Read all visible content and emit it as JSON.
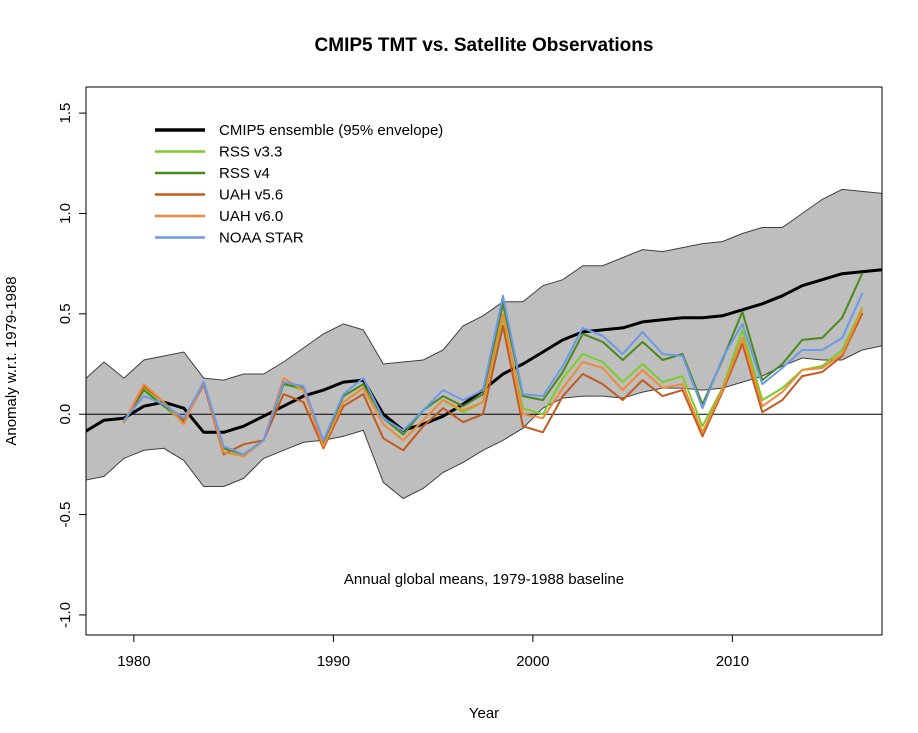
{
  "chart_data": {
    "type": "line",
    "title": "CMIP5 TMT vs. Satellite Observations",
    "xlabel": "Year",
    "ylabel": "Anomaly w.r.t. 1979-1988",
    "xlim": [
      1977.6,
      2017.5
    ],
    "ylim": [
      -1.1,
      1.63
    ],
    "x_ticks": [
      1980,
      1990,
      2000,
      2010
    ],
    "y_ticks": [
      -1.0,
      -0.5,
      0.0,
      0.5,
      1.0,
      1.5
    ],
    "x_tick_labels": [
      "1980",
      "1990",
      "2000",
      "2010"
    ],
    "y_tick_labels": [
      "-1.0",
      "-0.5",
      "0.0",
      "0.5",
      "1.0",
      "1.5"
    ],
    "annotation": "Annual global means, 1979-1988 baseline",
    "zero_line": true,
    "legend_position": "top-left",
    "envelope": {
      "name": "CMIP5 ensemble (95% envelope)",
      "fill_color": "#bebebe",
      "x": [
        1977.5,
        1978.5,
        1979.5,
        1980.5,
        1981.5,
        1982.5,
        1983.5,
        1984.5,
        1985.5,
        1986.5,
        1987.5,
        1988.5,
        1989.5,
        1990.5,
        1991.5,
        1992.5,
        1993.5,
        1994.5,
        1995.5,
        1996.5,
        1997.5,
        1998.5,
        1999.5,
        2000.5,
        2001.5,
        2002.5,
        2003.5,
        2004.5,
        2005.5,
        2006.5,
        2007.5,
        2008.5,
        2009.5,
        2010.5,
        2011.5,
        2012.5,
        2013.5,
        2014.5,
        2015.5,
        2016.5,
        2017.5
      ],
      "upper": [
        0.17,
        0.26,
        0.18,
        0.27,
        0.29,
        0.31,
        0.18,
        0.17,
        0.2,
        0.2,
        0.26,
        0.33,
        0.4,
        0.45,
        0.42,
        0.25,
        0.26,
        0.27,
        0.32,
        0.44,
        0.49,
        0.56,
        0.56,
        0.64,
        0.67,
        0.74,
        0.74,
        0.78,
        0.82,
        0.81,
        0.83,
        0.85,
        0.86,
        0.9,
        0.93,
        0.93,
        1.0,
        1.07,
        1.12,
        1.11,
        1.1
      ],
      "lower": [
        -0.33,
        -0.31,
        -0.22,
        -0.18,
        -0.17,
        -0.23,
        -0.36,
        -0.36,
        -0.32,
        -0.22,
        -0.18,
        -0.14,
        -0.13,
        -0.11,
        -0.08,
        -0.34,
        -0.42,
        -0.37,
        -0.29,
        -0.24,
        -0.18,
        -0.13,
        -0.07,
        0.03,
        0.08,
        0.09,
        0.09,
        0.08,
        0.11,
        0.13,
        0.13,
        0.12,
        0.13,
        0.16,
        0.19,
        0.24,
        0.28,
        0.27,
        0.27,
        0.32,
        0.34
      ]
    },
    "series": [
      {
        "name": "CMIP5 ensemble (95% envelope)",
        "color": "#000000",
        "width": 3,
        "x": [
          1977.5,
          1978.5,
          1979.5,
          1980.5,
          1981.5,
          1982.5,
          1983.5,
          1984.5,
          1985.5,
          1986.5,
          1987.5,
          1988.5,
          1989.5,
          1990.5,
          1991.5,
          1992.5,
          1993.5,
          1994.5,
          1995.5,
          1996.5,
          1997.5,
          1998.5,
          1999.5,
          2000.5,
          2001.5,
          2002.5,
          2003.5,
          2004.5,
          2005.5,
          2006.5,
          2007.5,
          2008.5,
          2009.5,
          2010.5,
          2011.5,
          2012.5,
          2013.5,
          2014.5,
          2015.5,
          2016.5,
          2017.5
        ],
        "values": [
          -0.09,
          -0.03,
          -0.02,
          0.04,
          0.06,
          0.03,
          -0.09,
          -0.09,
          -0.06,
          -0.01,
          0.04,
          0.09,
          0.12,
          0.16,
          0.17,
          0.0,
          -0.08,
          -0.05,
          -0.01,
          0.05,
          0.12,
          0.2,
          0.25,
          0.31,
          0.37,
          0.41,
          0.42,
          0.43,
          0.46,
          0.47,
          0.48,
          0.48,
          0.49,
          0.52,
          0.55,
          0.59,
          0.64,
          0.67,
          0.7,
          0.71,
          0.72
        ]
      },
      {
        "name": "RSS v3.3",
        "color": "#7ccd2a",
        "width": 2,
        "x": [
          1979.5,
          1980.5,
          1981.5,
          1982.5,
          1983.5,
          1984.5,
          1985.5,
          1986.5,
          1987.5,
          1988.5,
          1989.5,
          1990.5,
          1991.5,
          1992.5,
          1993.5,
          1994.5,
          1995.5,
          1996.5,
          1997.5,
          1998.5,
          1999.5,
          2000.5,
          2001.5,
          2002.5,
          2003.5,
          2004.5,
          2005.5,
          2006.5,
          2007.5,
          2008.5,
          2009.5,
          2010.5,
          2011.5,
          2012.5,
          2013.5,
          2014.5,
          2015.5,
          2016.5
        ],
        "values": [
          -0.04,
          0.13,
          0.04,
          -0.04,
          0.16,
          -0.17,
          -0.21,
          -0.13,
          0.15,
          0.12,
          -0.15,
          0.06,
          0.13,
          -0.05,
          -0.13,
          -0.03,
          0.07,
          0.01,
          0.06,
          0.48,
          0.03,
          0.0,
          0.18,
          0.3,
          0.26,
          0.16,
          0.25,
          0.16,
          0.19,
          -0.06,
          0.13,
          0.42,
          0.07,
          0.13,
          0.22,
          0.24,
          0.32,
          0.53
        ]
      },
      {
        "name": "RSS v4",
        "color": "#4a8a1a",
        "width": 2,
        "x": [
          1979.5,
          1980.5,
          1981.5,
          1982.5,
          1983.5,
          1984.5,
          1985.5,
          1986.5,
          1987.5,
          1988.5,
          1989.5,
          1990.5,
          1991.5,
          1992.5,
          1993.5,
          1994.5,
          1995.5,
          1996.5,
          1997.5,
          1998.5,
          1999.5,
          2000.5,
          2001.5,
          2002.5,
          2003.5,
          2004.5,
          2005.5,
          2006.5,
          2007.5,
          2008.5,
          2009.5,
          2010.5,
          2011.5,
          2012.5,
          2013.5,
          2014.5,
          2015.5,
          2016.5
        ],
        "values": [
          -0.04,
          0.12,
          0.04,
          -0.03,
          0.16,
          -0.17,
          -0.2,
          -0.13,
          0.15,
          0.13,
          -0.14,
          0.09,
          0.15,
          -0.02,
          -0.1,
          0.02,
          0.09,
          0.04,
          0.1,
          0.55,
          0.09,
          0.07,
          0.21,
          0.4,
          0.36,
          0.27,
          0.36,
          0.27,
          0.3,
          0.05,
          0.27,
          0.51,
          0.17,
          0.25,
          0.37,
          0.38,
          0.48,
          0.7
        ]
      },
      {
        "name": "UAH v5.6",
        "color": "#c25a1c",
        "width": 2,
        "x": [
          1979.5,
          1980.5,
          1981.5,
          1982.5,
          1983.5,
          1984.5,
          1985.5,
          1986.5,
          1987.5,
          1988.5,
          1989.5,
          1990.5,
          1991.5,
          1992.5,
          1993.5,
          1994.5,
          1995.5,
          1996.5,
          1997.5,
          1998.5,
          1999.5,
          2000.5,
          2001.5,
          2002.5,
          2003.5,
          2004.5,
          2005.5,
          2006.5,
          2007.5,
          2008.5,
          2009.5,
          2010.5,
          2011.5,
          2012.5,
          2013.5,
          2014.5,
          2015.5,
          2016.5
        ],
        "values": [
          -0.04,
          0.14,
          0.06,
          -0.04,
          0.15,
          -0.2,
          -0.15,
          -0.13,
          0.1,
          0.06,
          -0.17,
          0.04,
          0.1,
          -0.12,
          -0.18,
          -0.06,
          0.03,
          -0.04,
          0.0,
          0.44,
          -0.06,
          -0.09,
          0.09,
          0.2,
          0.15,
          0.07,
          0.17,
          0.09,
          0.12,
          -0.11,
          0.11,
          0.35,
          0.01,
          0.07,
          0.19,
          0.21,
          0.29,
          0.5
        ]
      },
      {
        "name": "UAH v6.0",
        "color": "#f08a3a",
        "width": 2,
        "x": [
          1979.5,
          1980.5,
          1981.5,
          1982.5,
          1983.5,
          1984.5,
          1985.5,
          1986.5,
          1987.5,
          1988.5,
          1989.5,
          1990.5,
          1991.5,
          1992.5,
          1993.5,
          1994.5,
          1995.5,
          1996.5,
          1997.5,
          1998.5,
          1999.5,
          2000.5,
          2001.5,
          2002.5,
          2003.5,
          2004.5,
          2005.5,
          2006.5,
          2007.5,
          2008.5,
          2009.5,
          2010.5,
          2011.5,
          2012.5,
          2013.5,
          2014.5,
          2015.5,
          2016.5
        ],
        "values": [
          -0.04,
          0.15,
          0.06,
          -0.05,
          0.16,
          -0.19,
          -0.21,
          -0.13,
          0.18,
          0.12,
          -0.16,
          0.06,
          0.13,
          -0.05,
          -0.13,
          -0.03,
          0.07,
          0.02,
          0.06,
          0.5,
          0.0,
          -0.02,
          0.13,
          0.26,
          0.23,
          0.12,
          0.22,
          0.13,
          0.15,
          -0.09,
          0.12,
          0.38,
          0.04,
          0.11,
          0.22,
          0.23,
          0.3,
          0.52
        ]
      },
      {
        "name": "NOAA STAR",
        "color": "#6a9ae8",
        "width": 2,
        "x": [
          1979.5,
          1980.5,
          1981.5,
          1982.5,
          1983.5,
          1984.5,
          1985.5,
          1986.5,
          1987.5,
          1988.5,
          1989.5,
          1990.5,
          1991.5,
          1992.5,
          1993.5,
          1994.5,
          1995.5,
          1996.5,
          1997.5,
          1998.5,
          1999.5,
          2000.5,
          2001.5,
          2002.5,
          2003.5,
          2004.5,
          2005.5,
          2006.5,
          2007.5,
          2008.5,
          2009.5,
          2010.5,
          2011.5,
          2012.5,
          2013.5,
          2014.5,
          2015.5,
          2016.5
        ],
        "values": [
          -0.03,
          0.09,
          0.05,
          -0.02,
          0.16,
          -0.16,
          -0.2,
          -0.13,
          0.16,
          0.14,
          -0.13,
          0.1,
          0.18,
          -0.02,
          -0.08,
          0.02,
          0.12,
          0.07,
          0.12,
          0.59,
          0.1,
          0.09,
          0.24,
          0.43,
          0.39,
          0.3,
          0.41,
          0.3,
          0.29,
          0.03,
          0.28,
          0.45,
          0.15,
          0.23,
          0.32,
          0.32,
          0.38,
          0.6
        ]
      }
    ]
  }
}
